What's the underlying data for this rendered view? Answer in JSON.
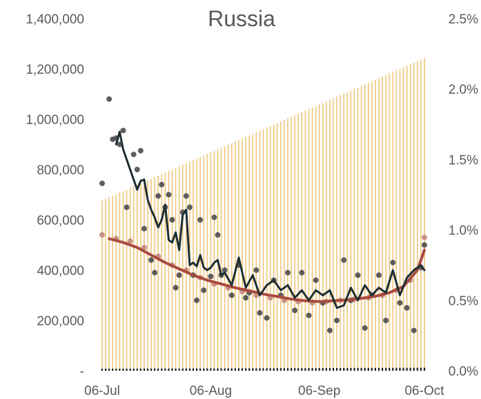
{
  "chart_data": {
    "type": "combo",
    "title": "Russia",
    "xlabel": "",
    "ylabel": "",
    "y2label": "",
    "x_tick_labels": [
      "06-Jul",
      "06-Aug",
      "06-Sep",
      "06-Oct"
    ],
    "x_ticks": [
      "2020-07-06",
      "2020-08-06",
      "2020-09-06",
      "2020-10-06"
    ],
    "x_range": [
      "2020-07-06",
      "2020-10-06"
    ],
    "y_left": {
      "range": [
        0,
        1400000
      ],
      "step": 200000,
      "tick_labels": [
        "-",
        "200,000",
        "400,000",
        "600,000",
        "800,000",
        "1,000,000",
        "1,200,000",
        "1,400,000"
      ]
    },
    "y_right": {
      "range": [
        0,
        0.025
      ],
      "step": 0.005,
      "tick_labels": [
        "0.0%",
        "0.5%",
        "1.0%",
        "1.5%",
        "2.0%",
        "2.5%"
      ]
    },
    "grid": false,
    "legend": "none",
    "colors": {
      "bars": "#f0c47a",
      "dark_points": "#4d4d4d",
      "dark_line": "#1e2e33",
      "red_points": "#c08278",
      "red_line": "#a94a3e",
      "baseline_bars": "#1a1a1a",
      "text": "#595959"
    },
    "series": [
      {
        "type": "bar",
        "axis": "right",
        "dates": [
          "2020-07-06",
          "2020-10-06"
        ],
        "values": [
          0.0121,
          0.0222
        ],
        "note": "daily bars rising linearly across the period"
      },
      {
        "type": "scatter",
        "axis": "left",
        "color_key": "dark_points",
        "dates": [
          "2020-07-06",
          "2020-07-08",
          "2020-07-09",
          "2020-07-10",
          "2020-07-11",
          "2020-07-12",
          "2020-07-13",
          "2020-07-15",
          "2020-07-16",
          "2020-07-17",
          "2020-07-18",
          "2020-07-20",
          "2020-07-21",
          "2020-07-22",
          "2020-07-23",
          "2020-07-24",
          "2020-07-25",
          "2020-07-26",
          "2020-07-27",
          "2020-07-28",
          "2020-07-29",
          "2020-07-30",
          "2020-07-31",
          "2020-08-01",
          "2020-08-02",
          "2020-08-03",
          "2020-08-04",
          "2020-08-06",
          "2020-08-07",
          "2020-08-08",
          "2020-08-09",
          "2020-08-10",
          "2020-08-12",
          "2020-08-14",
          "2020-08-16",
          "2020-08-17",
          "2020-08-19",
          "2020-08-20",
          "2020-08-22",
          "2020-08-24",
          "2020-08-26",
          "2020-08-28",
          "2020-08-30",
          "2020-09-01",
          "2020-09-03",
          "2020-09-05",
          "2020-09-07",
          "2020-09-09",
          "2020-09-11",
          "2020-09-13",
          "2020-09-15",
          "2020-09-17",
          "2020-09-19",
          "2020-09-21",
          "2020-09-23",
          "2020-09-25",
          "2020-09-27",
          "2020-09-29",
          "2020-10-01",
          "2020-10-03",
          "2020-10-05",
          "2020-10-06"
        ],
        "values": [
          745000,
          1080000,
          920000,
          925000,
          900000,
          955000,
          650000,
          860000,
          800000,
          875000,
          565000,
          440000,
          390000,
          695000,
          740000,
          650000,
          700000,
          600000,
          330000,
          380000,
          630000,
          695000,
          650000,
          380000,
          280000,
          600000,
          320000,
          375000,
          610000,
          540000,
          380000,
          400000,
          300000,
          420000,
          290000,
          310000,
          400000,
          230000,
          210000,
          360000,
          300000,
          390000,
          240000,
          390000,
          220000,
          360000,
          270000,
          160000,
          200000,
          440000,
          280000,
          380000,
          170000,
          300000,
          380000,
          200000,
          430000,
          270000,
          250000,
          160000,
          410000,
          500000
        ]
      },
      {
        "type": "line",
        "axis": "left",
        "color_key": "dark_line",
        "dates": [
          "2020-07-10",
          "2020-07-11",
          "2020-07-12",
          "2020-07-14",
          "2020-07-15",
          "2020-07-16",
          "2020-07-17",
          "2020-07-18",
          "2020-07-19",
          "2020-07-20",
          "2020-07-21",
          "2020-07-22",
          "2020-07-23",
          "2020-07-24",
          "2020-07-25",
          "2020-07-26",
          "2020-07-27",
          "2020-07-28",
          "2020-07-29",
          "2020-07-30",
          "2020-07-31",
          "2020-08-01",
          "2020-08-02",
          "2020-08-03",
          "2020-08-04",
          "2020-08-05",
          "2020-08-06",
          "2020-08-07",
          "2020-08-08",
          "2020-08-09",
          "2020-08-10",
          "2020-08-12",
          "2020-08-14",
          "2020-08-16",
          "2020-08-18",
          "2020-08-20",
          "2020-08-22",
          "2020-08-24",
          "2020-08-26",
          "2020-08-28",
          "2020-08-30",
          "2020-09-01",
          "2020-09-03",
          "2020-09-05",
          "2020-09-07",
          "2020-09-09",
          "2020-09-11",
          "2020-09-13",
          "2020-09-15",
          "2020-09-17",
          "2020-09-19",
          "2020-09-21",
          "2020-09-23",
          "2020-09-25",
          "2020-09-27",
          "2020-09-29",
          "2020-10-01",
          "2020-10-03",
          "2020-10-05",
          "2020-10-06"
        ],
        "values": [
          900000,
          950000,
          880000,
          800000,
          760000,
          720000,
          755000,
          760000,
          680000,
          640000,
          610000,
          570000,
          600000,
          660000,
          520000,
          510000,
          550000,
          480000,
          620000,
          640000,
          420000,
          430000,
          415000,
          460000,
          410000,
          400000,
          410000,
          430000,
          440000,
          380000,
          390000,
          340000,
          450000,
          330000,
          380000,
          300000,
          340000,
          360000,
          320000,
          340000,
          290000,
          320000,
          280000,
          320000,
          300000,
          320000,
          250000,
          260000,
          330000,
          280000,
          340000,
          300000,
          330000,
          310000,
          400000,
          300000,
          370000,
          400000,
          420000,
          400000
        ]
      },
      {
        "type": "scatter",
        "axis": "left",
        "color_key": "red_points",
        "dates": [
          "2020-07-06",
          "2020-07-10",
          "2020-07-14",
          "2020-07-18",
          "2020-07-22",
          "2020-07-26",
          "2020-07-30",
          "2020-08-03",
          "2020-08-07",
          "2020-08-11",
          "2020-08-15",
          "2020-08-19",
          "2020-08-23",
          "2020-08-27",
          "2020-08-31",
          "2020-09-04",
          "2020-09-08",
          "2020-09-12",
          "2020-09-16",
          "2020-09-20",
          "2020-09-24",
          "2020-09-28",
          "2020-10-02",
          "2020-10-06"
        ],
        "values": [
          540000,
          525000,
          515000,
          490000,
          455000,
          420000,
          400000,
          370000,
          345000,
          330000,
          315000,
          300000,
          290000,
          280000,
          275000,
          270000,
          275000,
          280000,
          285000,
          290000,
          300000,
          320000,
          360000,
          530000
        ]
      },
      {
        "type": "line",
        "axis": "left",
        "color_key": "red_line",
        "dates": [
          "2020-07-08",
          "2020-07-12",
          "2020-07-16",
          "2020-07-20",
          "2020-07-24",
          "2020-07-28",
          "2020-08-01",
          "2020-08-05",
          "2020-08-09",
          "2020-08-13",
          "2020-08-17",
          "2020-08-21",
          "2020-08-25",
          "2020-08-29",
          "2020-09-02",
          "2020-09-06",
          "2020-09-10",
          "2020-09-14",
          "2020-09-18",
          "2020-09-22",
          "2020-09-26",
          "2020-09-30",
          "2020-10-04",
          "2020-10-06"
        ],
        "values": [
          525000,
          510000,
          490000,
          460000,
          430000,
          405000,
          380000,
          360000,
          345000,
          330000,
          318000,
          305000,
          295000,
          285000,
          278000,
          275000,
          278000,
          282000,
          288000,
          296000,
          310000,
          335000,
          400000,
          480000
        ]
      },
      {
        "type": "bar",
        "axis": "left",
        "color_key": "baseline_bars",
        "dates": [
          "2020-07-06",
          "2020-10-06"
        ],
        "values": [
          8000,
          12000
        ],
        "note": "small dark daily bars along the baseline"
      }
    ]
  }
}
